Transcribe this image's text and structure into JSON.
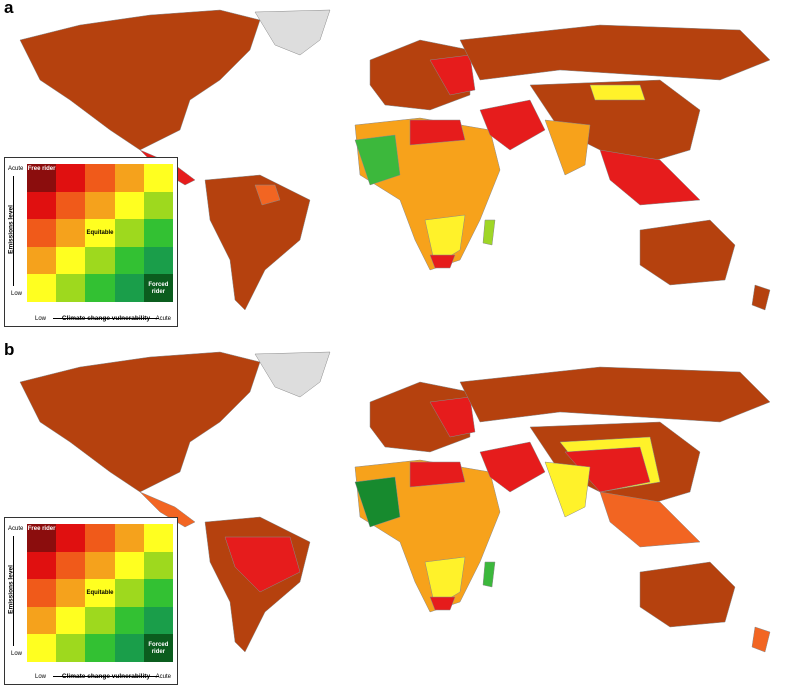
{
  "panels": [
    {
      "letter": "a",
      "legend": {
        "y_axis_title": "Emissions level",
        "y_high": "Acute",
        "y_low": "Low",
        "x_axis_title": "Climate change vulnerability",
        "x_low": "Low",
        "x_high": "Acute",
        "corner_top_left": "Free rider",
        "center": "Equitable",
        "corner_bottom_right": "Forced rider"
      }
    },
    {
      "letter": "b",
      "legend": {
        "y_axis_title": "Emissions level",
        "y_high": "Acute",
        "y_low": "Low",
        "x_axis_title": "Climate change vulnerability",
        "x_low": "Low",
        "x_high": "Acute",
        "corner_top_left": "Free rider",
        "center": "Equitable",
        "corner_bottom_right": "Forced rider"
      }
    }
  ],
  "legend_colors": [
    [
      "#8b0d0d",
      "#e01010",
      "#f05a1a",
      "#f5a21c",
      "#ffff20"
    ],
    [
      "#e01010",
      "#f05a1a",
      "#f5a21c",
      "#ffff20",
      "#9ed91e"
    ],
    [
      "#f05a1a",
      "#f5a21c",
      "#ffff20",
      "#9ed91e",
      "#33c133"
    ],
    [
      "#f5a21c",
      "#ffff20",
      "#9ed91e",
      "#33c133",
      "#1a9e4a"
    ],
    [
      "#ffff20",
      "#9ed91e",
      "#33c133",
      "#1a9e4a",
      "#0b5d1e"
    ]
  ],
  "palette": {
    "brown": "#b5410e",
    "red": "#e61c1c",
    "orange": "#f26522",
    "light_orange": "#f7a21b",
    "yellow": "#fff22a",
    "light_green": "#9fd626",
    "green": "#3cb83c",
    "dark_green": "#178a2e",
    "greenland_gray": "#dddddd",
    "border": "#8a8a8a"
  }
}
